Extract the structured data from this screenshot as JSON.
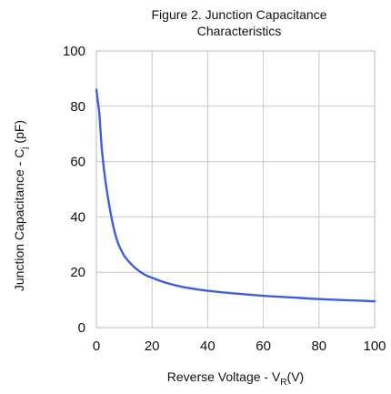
{
  "chart_data": {
    "type": "line",
    "title_lines": [
      "Figure 2. Junction Capacitance",
      "Characteristics"
    ],
    "xlabel": {
      "main": "Reverse Voltage - V",
      "sub": "R",
      "unit": "(V)"
    },
    "ylabel": {
      "main": "Junction Capacitance - C",
      "sub": "j",
      "unit": " (pF)"
    },
    "xlim": [
      0,
      100
    ],
    "ylim": [
      0,
      100
    ],
    "x_ticks": [
      "0",
      "20",
      "40",
      "60",
      "80",
      "100"
    ],
    "y_ticks": [
      "0",
      "20",
      "40",
      "60",
      "80",
      "100"
    ],
    "grid": true,
    "series": [
      {
        "color": "#3b5fe0",
        "x": [
          0,
          0.5,
          1,
          1.5,
          2,
          3,
          4,
          5,
          6,
          7,
          8,
          10,
          12,
          14,
          16,
          18,
          20,
          25,
          30,
          35,
          40,
          50,
          60,
          70,
          80,
          90,
          100
        ],
        "y": [
          86,
          82,
          78,
          71,
          64,
          55,
          48,
          42,
          37,
          33,
          30,
          26,
          23.5,
          21.5,
          20,
          18.8,
          18,
          16.2,
          14.9,
          14,
          13.3,
          12.3,
          11.5,
          10.9,
          10.3,
          9.9,
          9.5
        ]
      }
    ]
  }
}
